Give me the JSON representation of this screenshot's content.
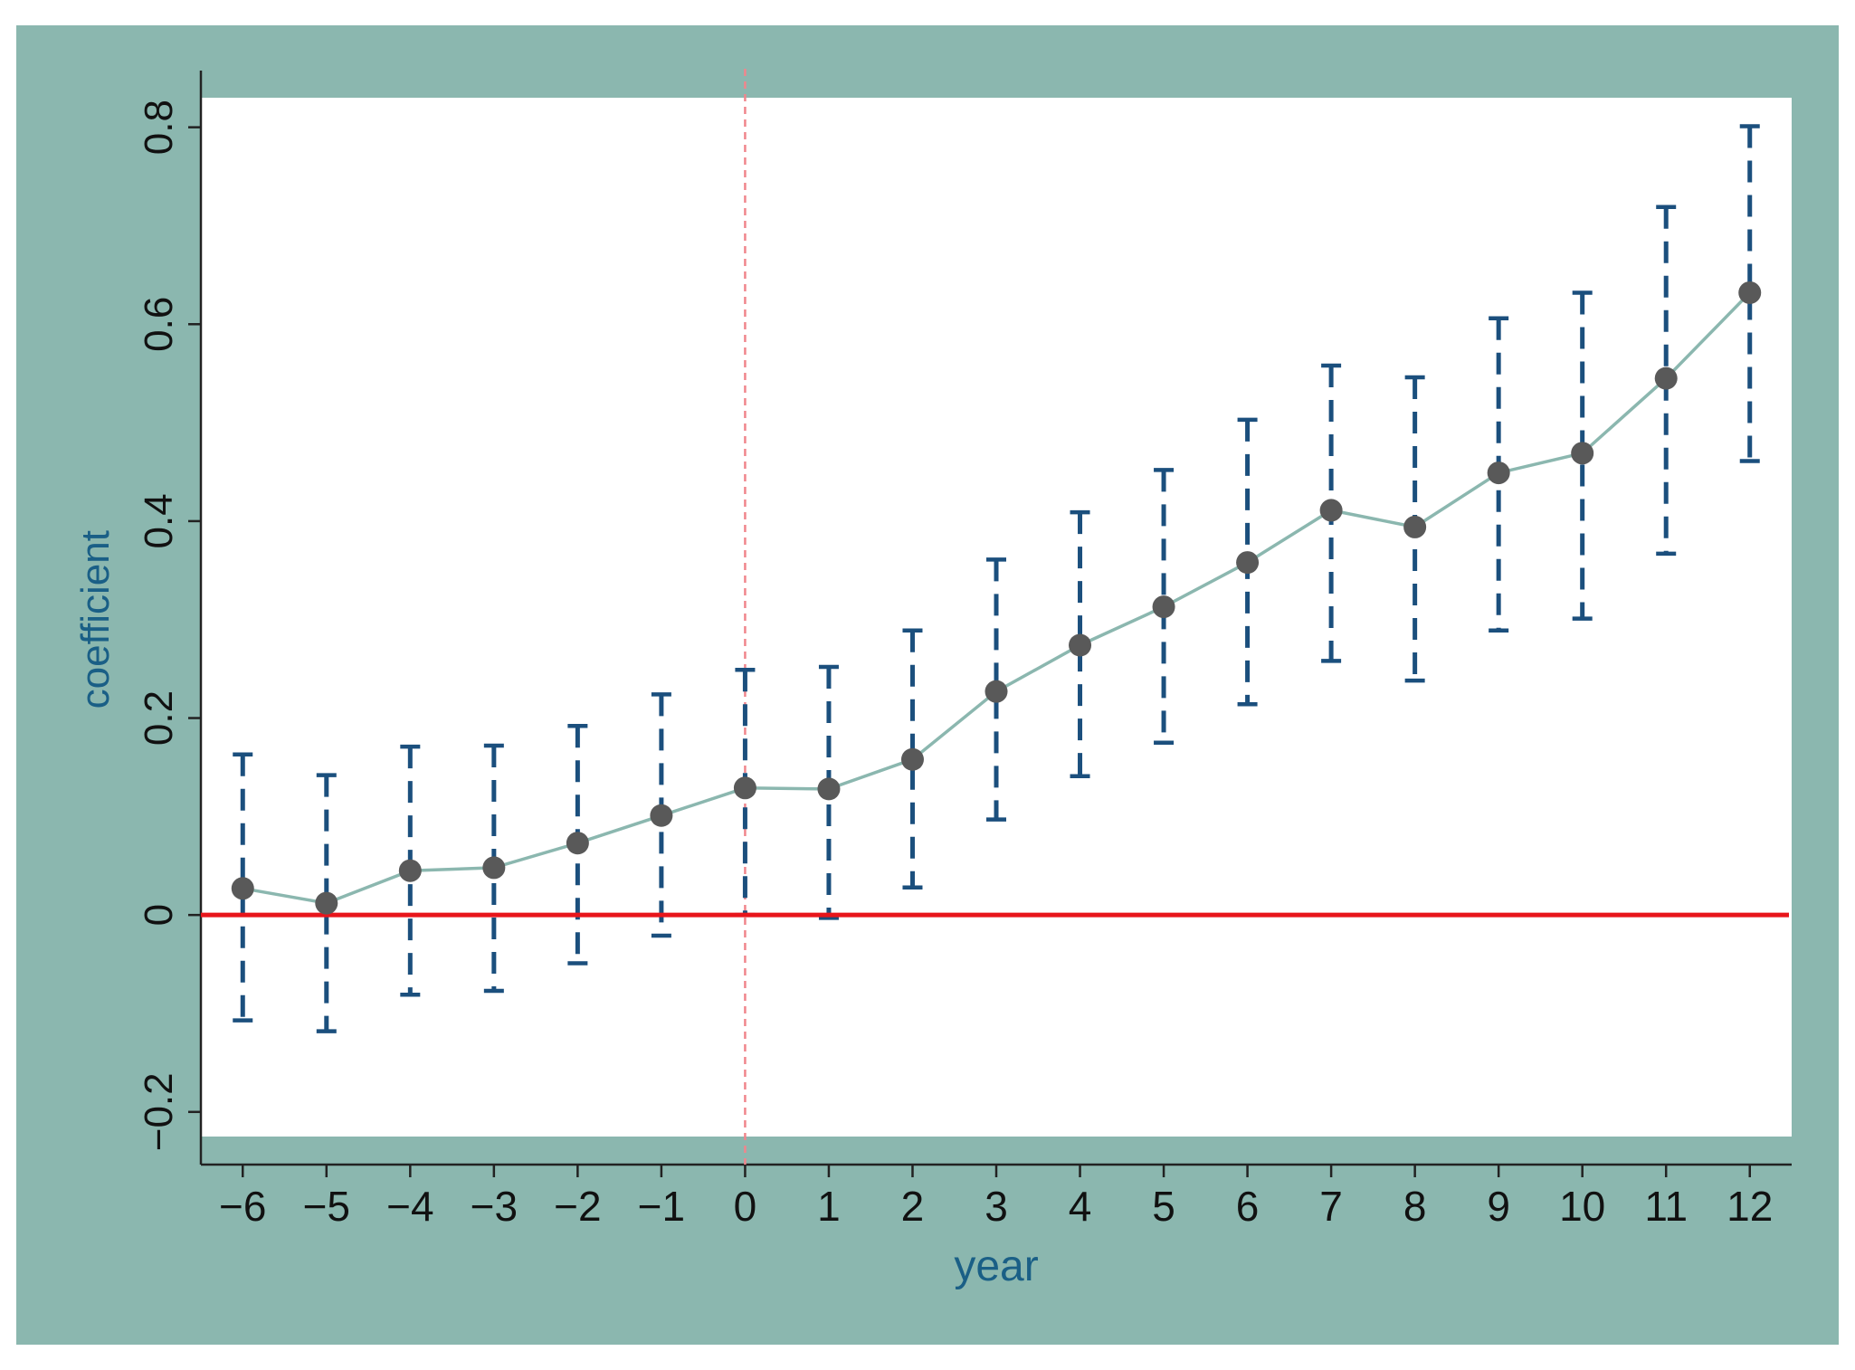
{
  "chart_data": {
    "type": "scatter",
    "title": "",
    "xlabel": "year",
    "ylabel": "coefficient",
    "x": [
      -6,
      -5,
      -4,
      -3,
      -2,
      -1,
      0,
      1,
      2,
      3,
      4,
      5,
      6,
      7,
      8,
      9,
      10,
      11,
      12
    ],
    "series": [
      {
        "values": [
          0.027,
          0.012,
          0.045,
          0.048,
          0.073,
          0.101,
          0.129,
          0.128,
          0.158,
          0.227,
          0.274,
          0.313,
          0.358,
          0.411,
          0.394,
          0.449,
          0.469,
          0.545,
          0.632
        ],
        "ci_lower": [
          -0.107,
          -0.118,
          -0.081,
          -0.077,
          -0.049,
          -0.021,
          0.0,
          -0.003,
          0.028,
          0.097,
          0.141,
          0.175,
          0.214,
          0.258,
          0.238,
          0.289,
          0.301,
          0.367,
          0.461
        ],
        "ci_upper": [
          0.163,
          0.142,
          0.171,
          0.172,
          0.192,
          0.224,
          0.249,
          0.252,
          0.289,
          0.361,
          0.409,
          0.452,
          0.503,
          0.558,
          0.546,
          0.606,
          0.632,
          0.719,
          0.801
        ]
      }
    ],
    "xticks": [
      "−6",
      "−5",
      "−4",
      "−3",
      "−2",
      "−1",
      "0",
      "1",
      "2",
      "3",
      "4",
      "5",
      "6",
      "7",
      "8",
      "9",
      "10",
      "11",
      "12"
    ],
    "yticks": [
      "−0.2",
      "0",
      "0.2",
      "0.4",
      "0.6",
      "0.8"
    ],
    "ytick_values": [
      -0.2,
      0,
      0.2,
      0.4,
      0.6,
      0.8
    ],
    "xlim": [
      -6.5,
      12.5
    ],
    "ylim": [
      -0.225,
      0.83
    ],
    "reference_lines": {
      "horizontal_y": 0,
      "vertical_x": 0
    },
    "grid": false,
    "legend": "none",
    "colors": {
      "frame_background": "#8BB7AF",
      "plot_background": "#FFFFFF",
      "connect_line": "#8BB7AF",
      "markers": "#595959",
      "error_bars": "#1B4F7D",
      "zero_line": "#E8151B",
      "vertical_line": "#F0868C",
      "axis_title": "#1A5F86"
    }
  }
}
